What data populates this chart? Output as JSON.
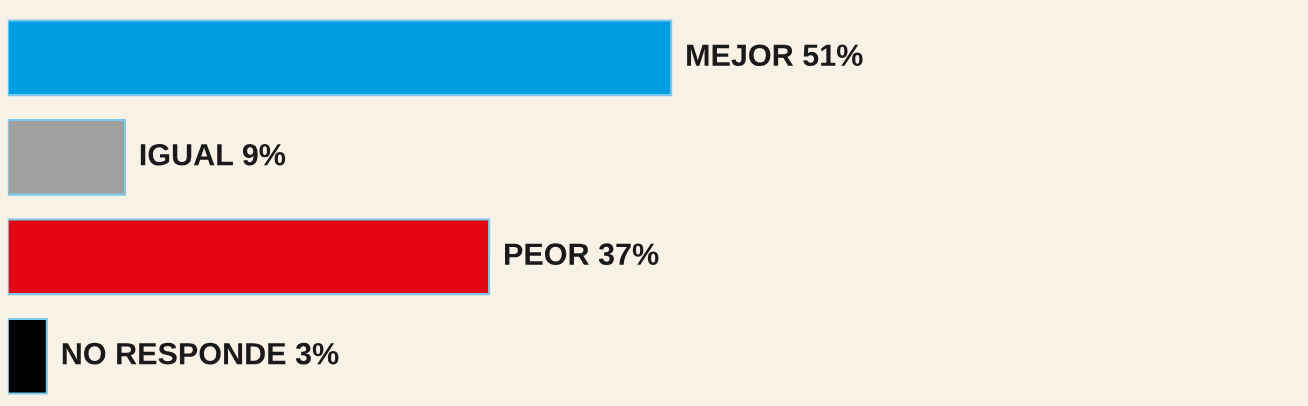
{
  "chart_data": {
    "type": "bar",
    "orientation": "horizontal",
    "categories": [
      null,
      null,
      null,
      null
    ],
    "values": [
      51,
      9,
      37,
      3
    ],
    "value_labels": [
      "MEJOR 51%",
      "IGUAL 9%",
      "PEOR 37%",
      "NO RESPONDE 3%"
    ],
    "colors": [
      "#009fe3",
      "#a0a0a0",
      "#e30613",
      "#000000"
    ]
  }
}
